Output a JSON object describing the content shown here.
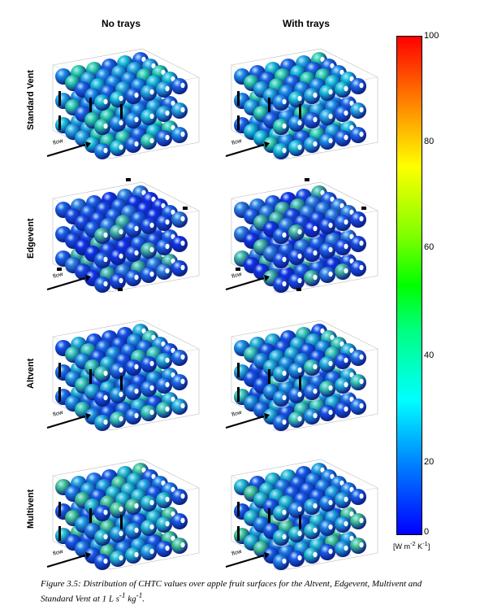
{
  "columns": [
    "No trays",
    "With trays"
  ],
  "rows": [
    "Standard Vent",
    "Edgevent",
    "Altvent",
    "Multivent"
  ],
  "flow_label": "flow",
  "colorbar": {
    "ticks": [
      "100",
      "80",
      "60",
      "40",
      "20",
      "0"
    ],
    "unit_prefix": "[W m",
    "unit_exp1": "-2",
    "unit_mid": " K",
    "unit_exp2": "-1",
    "unit_suffix": "]"
  },
  "caption": {
    "prefix": "Figure 3.5: Distribution of CHTC values over apple fruit surfaces for the Altvent, Edgevent, Multivent and Standard Vent at 1 L s",
    "sup1": "-1",
    "mid": " kg",
    "sup2": "-1",
    "suffix": "."
  },
  "colors": {
    "low": "#0000ff",
    "mid": "#00ffff",
    "high": "#ff0000",
    "sphere_base": "#1e6ee0"
  }
}
